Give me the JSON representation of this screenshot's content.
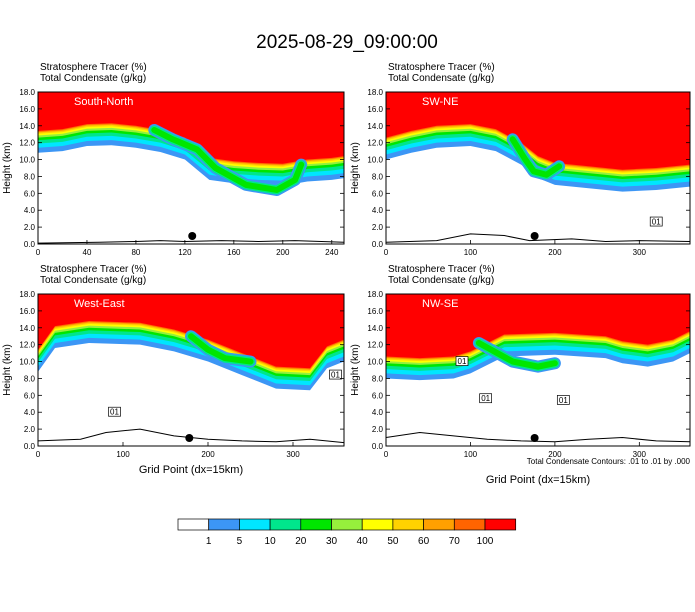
{
  "title": "2025-08-29_09:00:00",
  "chart_data": [
    {
      "type": "heatmap",
      "panel_label": "South-North",
      "header_lines": [
        "Stratosphere Tracer   (%)",
        "Total Condensate   (g/kg)"
      ],
      "ylabel": "Height (km)",
      "xlabel": "",
      "xlim": [
        0,
        250
      ],
      "ylim": [
        0,
        18
      ],
      "xticks": [
        "0",
        "40",
        "80",
        "120",
        "160",
        "200",
        "240"
      ],
      "yticks": [
        "0.0",
        "2.0",
        "4.0",
        "6.0",
        "8.0",
        "10.0",
        "12.0",
        "14.0",
        "16.0",
        "18.0"
      ],
      "tropopause_km": [
        [
          0,
          13.4
        ],
        [
          20,
          13.6
        ],
        [
          40,
          14.2
        ],
        [
          60,
          14.3
        ],
        [
          80,
          14.0
        ],
        [
          100,
          13.5
        ],
        [
          120,
          12.6
        ],
        [
          130,
          11.4
        ],
        [
          140,
          10.2
        ],
        [
          160,
          9.8
        ],
        [
          180,
          9.6
        ],
        [
          200,
          9.5
        ],
        [
          220,
          10.0
        ],
        [
          240,
          10.2
        ],
        [
          250,
          10.4
        ]
      ],
      "intrusion": [
        [
          95,
          13.5
        ],
        [
          110,
          12.4
        ],
        [
          130,
          11.2
        ],
        [
          145,
          9.0
        ],
        [
          170,
          7.0
        ],
        [
          195,
          6.4
        ],
        [
          210,
          7.6
        ],
        [
          215,
          9.4
        ]
      ],
      "terrain_km": [
        [
          0,
          0.1
        ],
        [
          50,
          0.2
        ],
        [
          80,
          0.3
        ],
        [
          100,
          0.4
        ],
        [
          120,
          0.3
        ],
        [
          150,
          0.4
        ],
        [
          180,
          0.3
        ],
        [
          210,
          0.4
        ],
        [
          250,
          0.2
        ]
      ],
      "marker_x": 126
    },
    {
      "type": "heatmap",
      "panel_label": "SW-NE",
      "header_lines": [
        "Stratosphere Tracer   (%)",
        "Total Condensate   (g/kg)"
      ],
      "ylabel": "Height (km)",
      "xlabel": "",
      "xlim": [
        0,
        360
      ],
      "ylim": [
        0,
        18
      ],
      "xticks": [
        "0",
        "100",
        "200",
        "300"
      ],
      "yticks": [
        "0.0",
        "2.0",
        "4.0",
        "6.0",
        "8.0",
        "10.0",
        "12.0",
        "14.0",
        "16.0",
        "18.0"
      ],
      "tropopause_km": [
        [
          0,
          12.6
        ],
        [
          30,
          13.4
        ],
        [
          60,
          14.0
        ],
        [
          100,
          14.2
        ],
        [
          130,
          13.6
        ],
        [
          160,
          12.0
        ],
        [
          180,
          10.4
        ],
        [
          200,
          9.6
        ],
        [
          240,
          9.2
        ],
        [
          280,
          8.8
        ],
        [
          320,
          9.0
        ],
        [
          360,
          9.4
        ]
      ],
      "intrusion": [
        [
          150,
          12.4
        ],
        [
          165,
          10.0
        ],
        [
          175,
          8.6
        ],
        [
          190,
          8.2
        ],
        [
          205,
          9.2
        ]
      ],
      "terrain_km": [
        [
          0,
          0.2
        ],
        [
          60,
          0.4
        ],
        [
          100,
          1.2
        ],
        [
          140,
          1.0
        ],
        [
          170,
          0.4
        ],
        [
          220,
          0.6
        ],
        [
          260,
          0.3
        ],
        [
          300,
          0.4
        ],
        [
          360,
          0.3
        ]
      ],
      "contour_labels": [
        {
          "x": 320,
          "y": 2.6,
          "text": "01"
        }
      ],
      "marker_x": 176
    },
    {
      "type": "heatmap",
      "panel_label": "West-East",
      "header_lines": [
        "Stratosphere Tracer   (%)",
        "Total Condensate   (g/kg)"
      ],
      "ylabel": "Height (km)",
      "xlabel": "Grid Point (dx=15km)",
      "xlim": [
        0,
        360
      ],
      "ylim": [
        0,
        18
      ],
      "xticks": [
        "0",
        "100",
        "200",
        "300"
      ],
      "yticks": [
        "0.0",
        "2.0",
        "4.0",
        "6.0",
        "8.0",
        "10.0",
        "12.0",
        "14.0",
        "16.0",
        "18.0"
      ],
      "tropopause_km": [
        [
          0,
          11.4
        ],
        [
          20,
          14.2
        ],
        [
          60,
          14.8
        ],
        [
          120,
          14.6
        ],
        [
          160,
          13.8
        ],
        [
          200,
          12.6
        ],
        [
          240,
          11.0
        ],
        [
          280,
          9.4
        ],
        [
          320,
          9.2
        ],
        [
          340,
          11.8
        ],
        [
          360,
          12.6
        ]
      ],
      "intrusion": [
        [
          180,
          13.0
        ],
        [
          200,
          11.4
        ],
        [
          220,
          10.4
        ],
        [
          250,
          10.0
        ]
      ],
      "terrain_km": [
        [
          0,
          0.6
        ],
        [
          50,
          0.8
        ],
        [
          80,
          1.6
        ],
        [
          120,
          2.0
        ],
        [
          160,
          1.2
        ],
        [
          200,
          0.8
        ],
        [
          240,
          0.6
        ],
        [
          280,
          0.5
        ],
        [
          320,
          0.8
        ],
        [
          360,
          0.4
        ]
      ],
      "contour_labels": [
        {
          "x": 90,
          "y": 4.0,
          "text": "01"
        },
        {
          "x": 350,
          "y": 8.4,
          "text": "01"
        }
      ],
      "marker_x": 178
    },
    {
      "type": "heatmap",
      "panel_label": "NW-SE",
      "header_lines": [
        "Stratosphere Tracer   (%)",
        "Total Condensate   (g/kg)"
      ],
      "ylabel": "Height (km)",
      "xlabel": "Grid Point (dx=15km)",
      "xlim": [
        0,
        360
      ],
      "ylim": [
        0,
        18
      ],
      "xticks": [
        "0",
        "100",
        "200",
        "300"
      ],
      "yticks": [
        "0.0",
        "2.0",
        "4.0",
        "6.0",
        "8.0",
        "10.0",
        "12.0",
        "14.0",
        "16.0",
        "18.0"
      ],
      "tropopause_km": [
        [
          0,
          10.6
        ],
        [
          40,
          10.4
        ],
        [
          80,
          10.6
        ],
        [
          100,
          11.2
        ],
        [
          140,
          13.2
        ],
        [
          200,
          13.4
        ],
        [
          260,
          13.0
        ],
        [
          280,
          12.4
        ],
        [
          310,
          12.0
        ],
        [
          340,
          12.6
        ],
        [
          360,
          13.6
        ]
      ],
      "intrusion": [
        [
          110,
          12.2
        ],
        [
          150,
          10.0
        ],
        [
          180,
          9.4
        ],
        [
          200,
          9.8
        ]
      ],
      "terrain_km": [
        [
          0,
          1.0
        ],
        [
          40,
          1.6
        ],
        [
          80,
          1.2
        ],
        [
          120,
          0.8
        ],
        [
          160,
          0.6
        ],
        [
          200,
          0.5
        ],
        [
          240,
          0.8
        ],
        [
          280,
          1.0
        ],
        [
          320,
          0.6
        ],
        [
          360,
          0.5
        ]
      ],
      "contour_labels": [
        {
          "x": 90,
          "y": 10.0,
          "text": "01"
        },
        {
          "x": 118,
          "y": 5.6,
          "text": "01"
        },
        {
          "x": 210,
          "y": 5.4,
          "text": "01"
        }
      ],
      "marker_x": 176
    }
  ],
  "footer_note": "Total Condensate Contours: .01 to .01 by .000",
  "colorbar": {
    "labels": [
      "1",
      "5",
      "10",
      "20",
      "30",
      "40",
      "50",
      "60",
      "70",
      "100"
    ],
    "colors": [
      "#ffffff",
      "#3c96f5",
      "#00e6ff",
      "#00e68c",
      "#00e600",
      "#96f03c",
      "#ffff00",
      "#ffd200",
      "#ffa000",
      "#ff6400",
      "#ff0000"
    ]
  }
}
